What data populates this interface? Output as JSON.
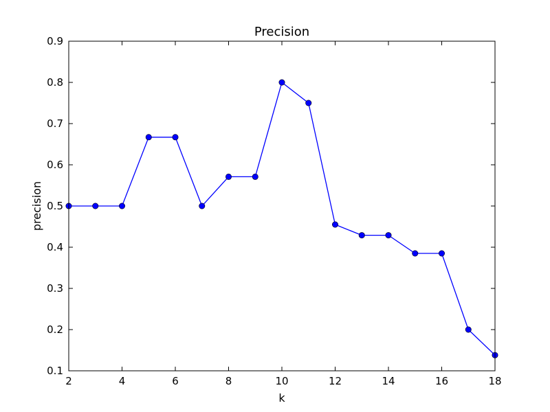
{
  "chart_data": {
    "type": "line",
    "title": "Precision",
    "xlabel": "k",
    "ylabel": "precision",
    "xlim": [
      2,
      18
    ],
    "ylim": [
      0.1,
      0.9
    ],
    "xticks": [
      2,
      4,
      6,
      8,
      10,
      12,
      14,
      16,
      18
    ],
    "yticks": [
      0.1,
      0.2,
      0.3,
      0.4,
      0.5,
      0.6,
      0.7,
      0.8,
      0.9
    ],
    "grid": false,
    "series": [
      {
        "color": "#0000ff",
        "marker": "circle",
        "x": [
          2,
          3,
          4,
          5,
          6,
          7,
          8,
          9,
          10,
          11,
          12,
          13,
          14,
          15,
          16,
          17,
          18
        ],
        "y": [
          0.5,
          0.5,
          0.5,
          0.667,
          0.667,
          0.5,
          0.571,
          0.571,
          0.8,
          0.75,
          0.455,
          0.429,
          0.429,
          0.385,
          0.385,
          0.2,
          0.138
        ]
      }
    ]
  }
}
